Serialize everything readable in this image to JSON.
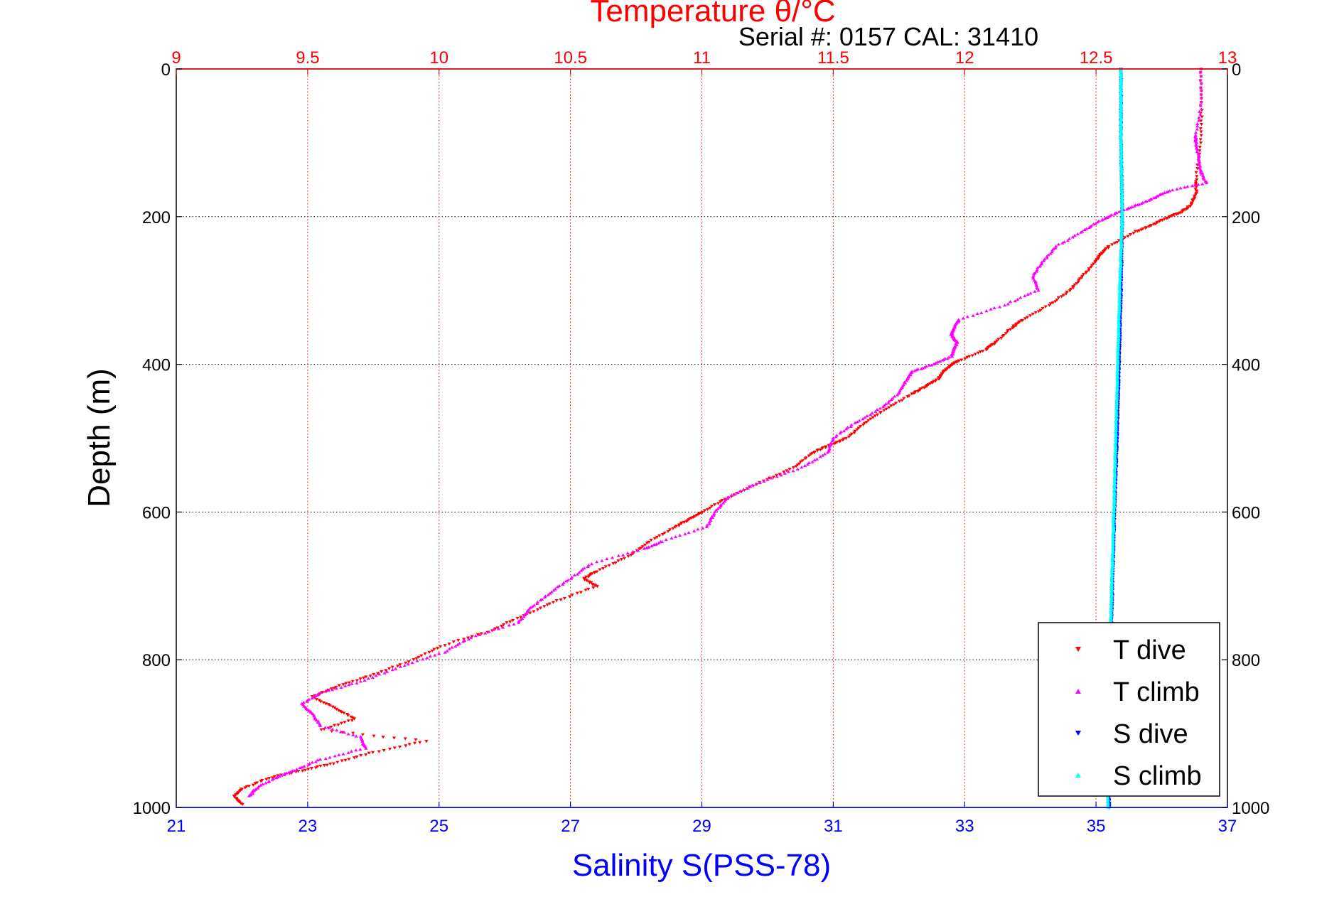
{
  "chart_data": {
    "type": "scatter",
    "title_top": "Temperature θ/°C",
    "subtitle": "Serial #: 0157  CAL: 31410",
    "xlabel_bottom": "Salinity S(PSS-78)",
    "ylabel": "Depth (m)",
    "colors": {
      "temperature_axis": "#ff0000",
      "salinity_axis": "#0000ff",
      "t_dive": "#ff0000",
      "t_climb": "#ff00ff",
      "s_dive": "#0000ff",
      "s_climb": "#00ffff"
    },
    "x_top": {
      "label": "Temperature θ/°C",
      "lim": [
        9,
        13
      ],
      "ticks": [
        "9",
        "9.5",
        "10",
        "10.5",
        "11",
        "11.5",
        "12",
        "12.5",
        "13"
      ],
      "grid": true
    },
    "x_bottom": {
      "label": "Salinity S(PSS-78)",
      "lim": [
        21,
        37
      ],
      "ticks": [
        "21",
        "23",
        "25",
        "27",
        "29",
        "31",
        "33",
        "35",
        "37"
      ]
    },
    "y": {
      "label": "Depth (m)",
      "lim": [
        0,
        1000
      ],
      "reversed": true,
      "ticks": [
        "0",
        "200",
        "400",
        "600",
        "800",
        "1000"
      ],
      "grid": true
    },
    "legend": {
      "position": "bottom-right",
      "entries": [
        "T dive",
        "T climb",
        "S dive",
        "S climb"
      ]
    },
    "series": [
      {
        "name": "T dive",
        "axis": "temperature",
        "marker": "triangle-down",
        "depth": [
          0,
          50,
          100,
          150,
          170,
          185,
          195,
          200,
          210,
          220,
          240,
          250,
          260,
          280,
          300,
          320,
          340,
          350,
          370,
          380,
          395,
          400,
          410,
          420,
          430,
          440,
          460,
          480,
          500,
          510,
          520,
          540,
          560,
          580,
          600,
          610,
          620,
          640,
          660,
          680,
          690,
          700,
          720,
          740,
          760,
          780,
          800,
          820,
          835,
          850,
          865,
          880,
          895,
          910,
          925,
          940,
          950,
          960,
          975,
          985,
          995
        ],
        "values": [
          12.9,
          12.9,
          12.9,
          12.88,
          12.88,
          12.86,
          12.82,
          12.78,
          12.72,
          12.65,
          12.55,
          12.52,
          12.5,
          12.45,
          12.4,
          12.32,
          12.22,
          12.18,
          12.12,
          12.08,
          11.98,
          11.95,
          11.92,
          11.9,
          11.85,
          11.8,
          11.7,
          11.62,
          11.55,
          11.48,
          11.42,
          11.35,
          11.22,
          11.1,
          11.0,
          10.95,
          10.9,
          10.8,
          10.72,
          10.6,
          10.55,
          10.6,
          10.45,
          10.32,
          10.2,
          10.02,
          9.9,
          9.75,
          9.62,
          9.52,
          9.6,
          9.68,
          9.55,
          9.95,
          9.75,
          9.6,
          9.48,
          9.35,
          9.25,
          9.22,
          9.25
        ]
      },
      {
        "name": "T climb",
        "axis": "temperature",
        "marker": "triangle-up",
        "depth": [
          0,
          50,
          90,
          100,
          120,
          140,
          155,
          165,
          175,
          185,
          195,
          205,
          220,
          240,
          260,
          280,
          300,
          320,
          340,
          350,
          360,
          370,
          380,
          390,
          400,
          410,
          420,
          440,
          460,
          480,
          500,
          520,
          540,
          560,
          580,
          600,
          620,
          640,
          650,
          670,
          690,
          710,
          730,
          750,
          770,
          790,
          810,
          830,
          845,
          860,
          875,
          890,
          905,
          920,
          935,
          950,
          960,
          975,
          985
        ],
        "values": [
          12.9,
          12.9,
          12.88,
          12.88,
          12.89,
          12.9,
          12.92,
          12.78,
          12.72,
          12.65,
          12.58,
          12.52,
          12.45,
          12.35,
          12.3,
          12.26,
          12.28,
          12.15,
          11.98,
          11.96,
          11.95,
          11.97,
          11.96,
          11.95,
          11.88,
          11.8,
          11.78,
          11.75,
          11.68,
          11.58,
          11.5,
          11.48,
          11.38,
          11.22,
          11.1,
          11.05,
          11.02,
          10.85,
          10.78,
          10.58,
          10.5,
          10.42,
          10.35,
          10.3,
          10.12,
          10.02,
          9.85,
          9.7,
          9.55,
          9.48,
          9.52,
          9.55,
          9.7,
          9.72,
          9.55,
          9.45,
          9.38,
          9.3,
          9.28
        ]
      },
      {
        "name": "S dive",
        "axis": "salinity",
        "marker": "triangle-down",
        "depth": [
          0,
          100,
          200,
          300,
          400,
          500,
          600,
          700,
          800,
          900,
          1000
        ],
        "values": [
          35.38,
          35.38,
          35.4,
          35.38,
          35.35,
          35.32,
          35.28,
          35.25,
          35.22,
          35.2,
          35.2
        ]
      },
      {
        "name": "S climb",
        "axis": "salinity",
        "marker": "triangle-up",
        "depth": [
          0,
          100,
          200,
          300,
          400,
          500,
          600,
          700,
          800,
          900,
          1000
        ],
        "values": [
          35.38,
          35.38,
          35.4,
          35.36,
          35.33,
          35.3,
          35.27,
          35.24,
          35.21,
          35.19,
          35.18
        ]
      }
    ]
  }
}
